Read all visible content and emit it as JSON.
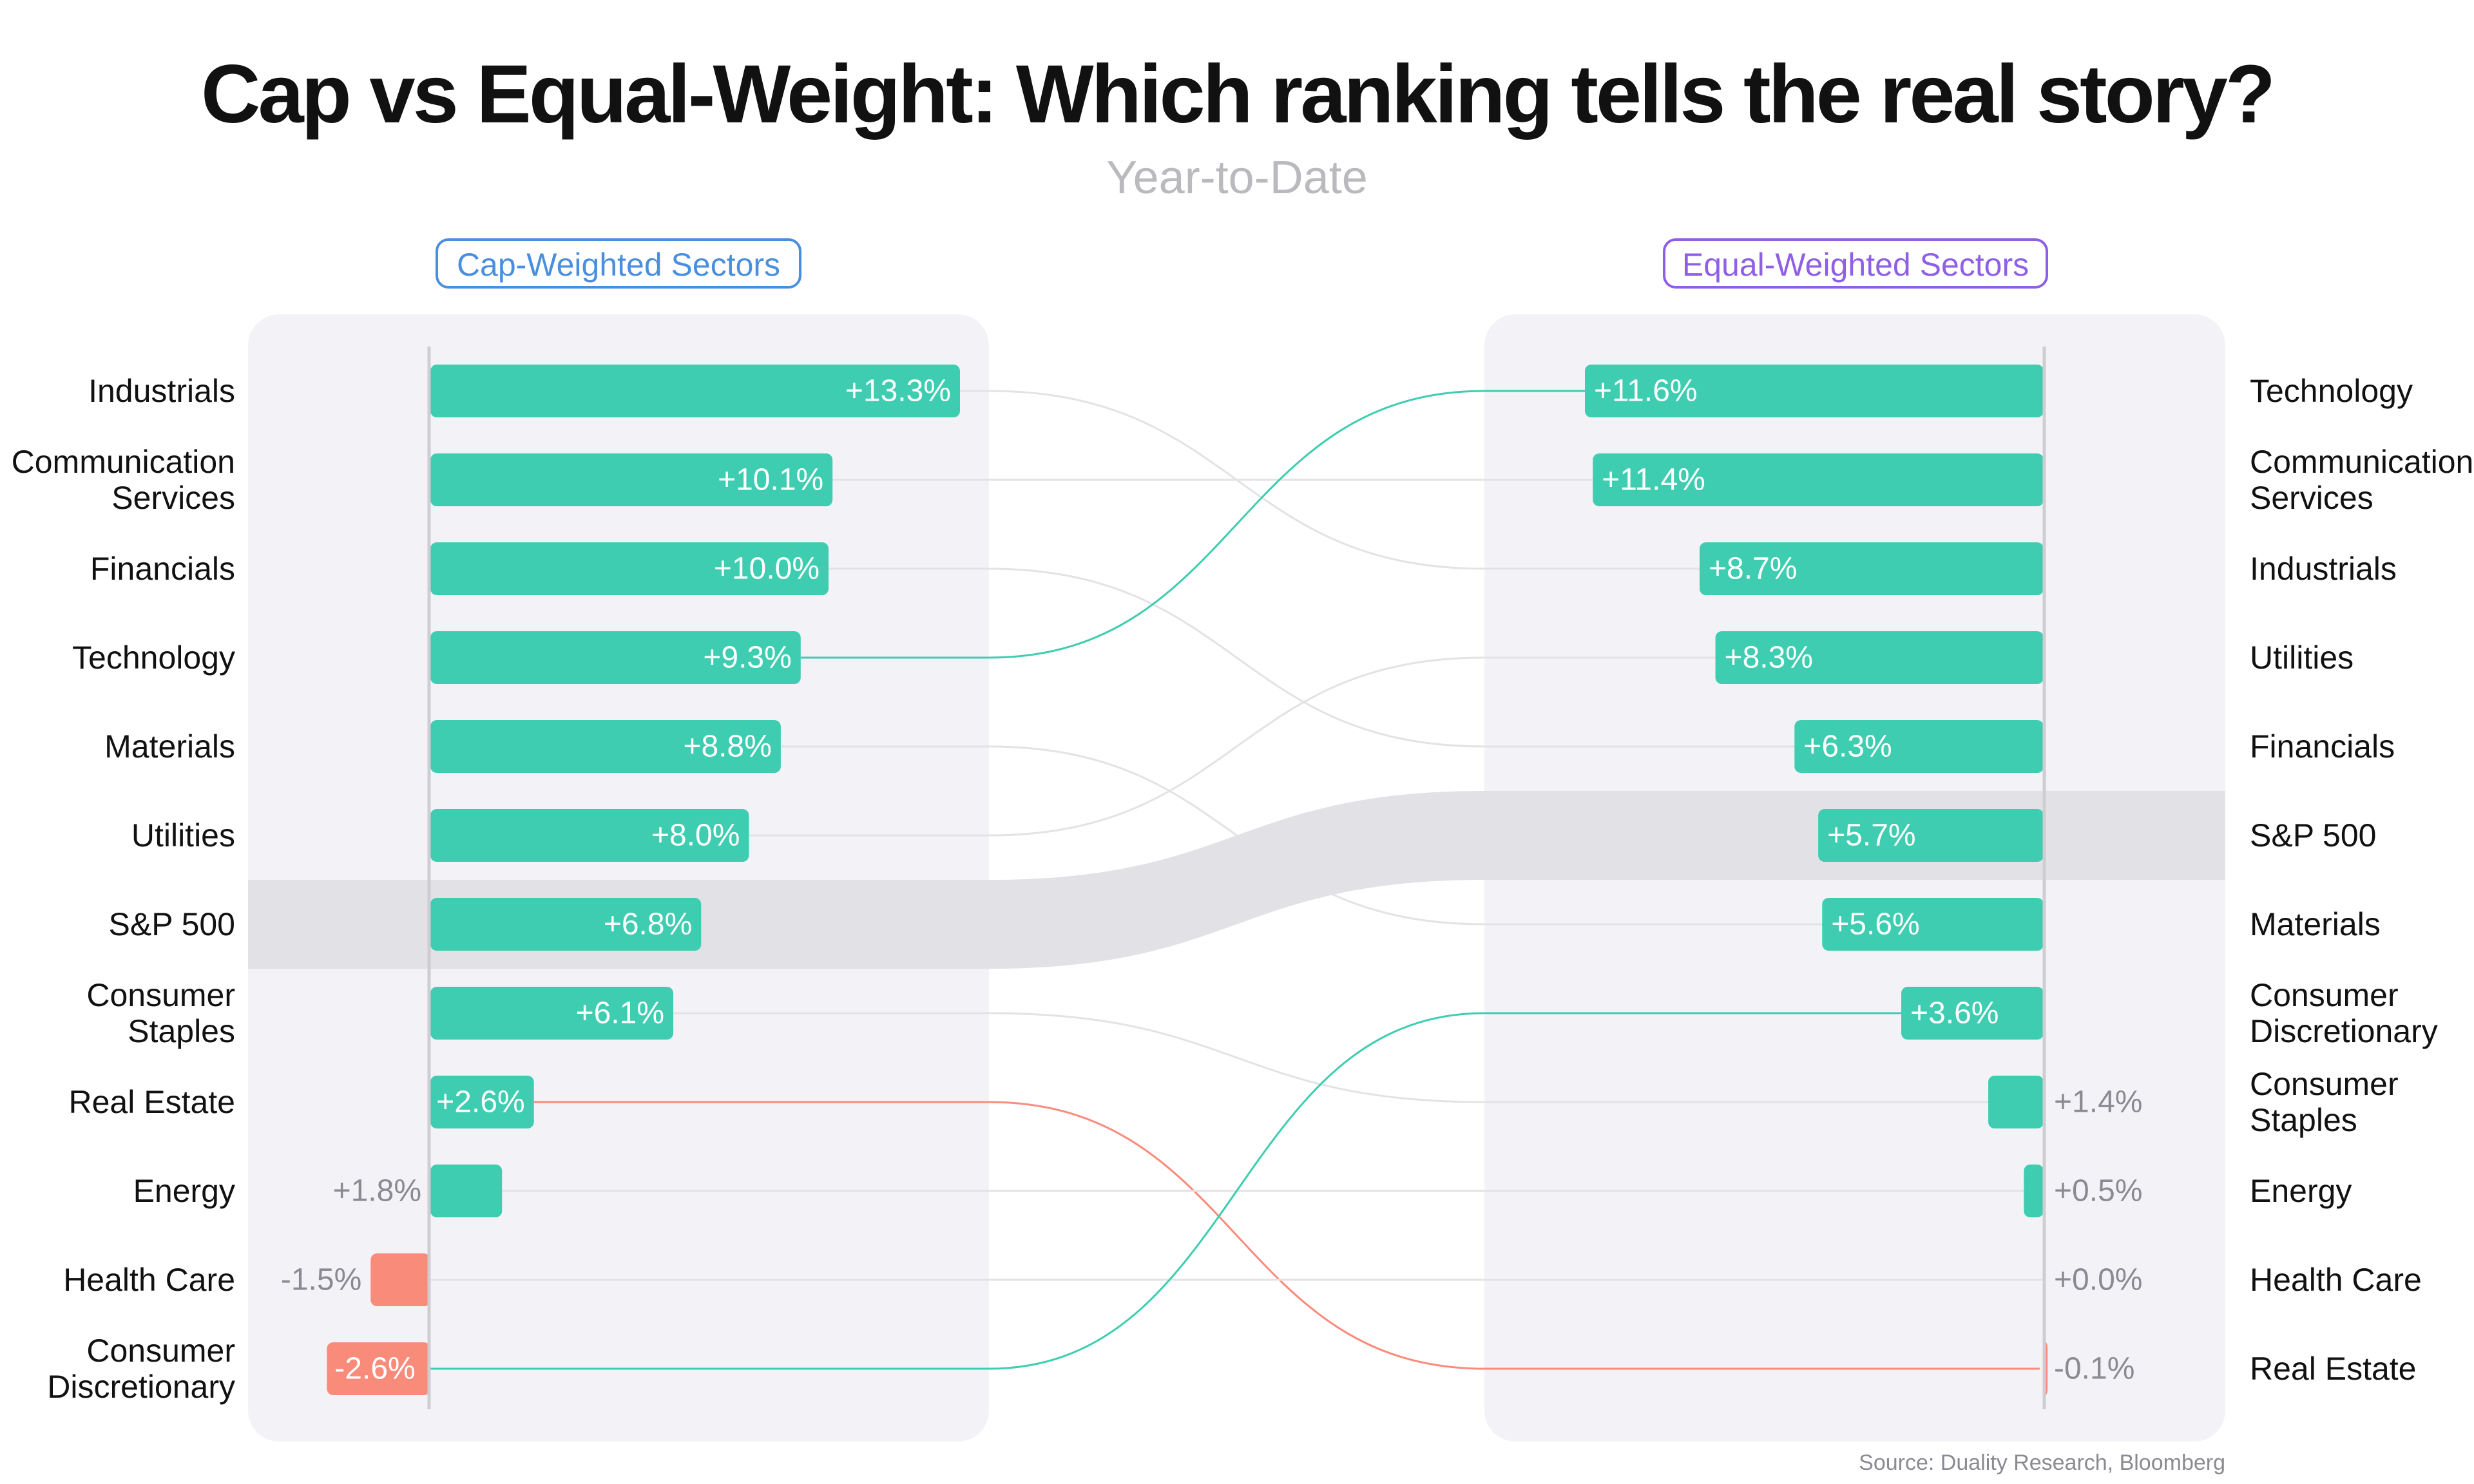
{
  "header": {
    "title": "Cap vs Equal-Weight: Which ranking tells the real story?",
    "subtitle": "Year-to-Date"
  },
  "panels": {
    "left_label": "Cap-Weighted Sectors",
    "right_label": "Equal-Weighted Sectors"
  },
  "footer": {
    "source": "Source: Duality Research, Bloomberg"
  },
  "colors": {
    "positive": "#3ecdb0",
    "negative": "#f98b7b",
    "connector_neutral": "#e3e3e6",
    "panel_bg": "#f3f3f7",
    "benchmark_band": "#e1e1e6",
    "left_accent": "#4a8fde",
    "right_accent": "#8f5fe6",
    "label_outside": "#8a8a90"
  },
  "chart_data": {
    "type": "bar",
    "unit": "%",
    "benchmark": "S&P 500",
    "cap_weighted": [
      {
        "sector": "Industrials",
        "value": 13.3,
        "label": "+13.3%"
      },
      {
        "sector": "Communication Services",
        "value": 10.1,
        "label": "+10.1%"
      },
      {
        "sector": "Financials",
        "value": 10.0,
        "label": "+10.0%"
      },
      {
        "sector": "Technology",
        "value": 9.3,
        "label": "+9.3%"
      },
      {
        "sector": "Materials",
        "value": 8.8,
        "label": "+8.8%"
      },
      {
        "sector": "Utilities",
        "value": 8.0,
        "label": "+8.0%"
      },
      {
        "sector": "S&P 500",
        "value": 6.8,
        "label": "+6.8%"
      },
      {
        "sector": "Consumer Staples",
        "value": 6.1,
        "label": "+6.1%"
      },
      {
        "sector": "Real Estate",
        "value": 2.6,
        "label": "+2.6%"
      },
      {
        "sector": "Energy",
        "value": 1.8,
        "label": "+1.8%"
      },
      {
        "sector": "Health Care",
        "value": -1.5,
        "label": "-1.5%"
      },
      {
        "sector": "Consumer Discretionary",
        "value": -2.6,
        "label": "-2.6%"
      }
    ],
    "equal_weighted": [
      {
        "sector": "Technology",
        "value": 11.6,
        "label": "+11.6%"
      },
      {
        "sector": "Communication Services",
        "value": 11.4,
        "label": "+11.4%"
      },
      {
        "sector": "Industrials",
        "value": 8.7,
        "label": "+8.7%"
      },
      {
        "sector": "Utilities",
        "value": 8.3,
        "label": "+8.3%"
      },
      {
        "sector": "Financials",
        "value": 6.3,
        "label": "+6.3%"
      },
      {
        "sector": "S&P 500",
        "value": 5.7,
        "label": "+5.7%"
      },
      {
        "sector": "Materials",
        "value": 5.6,
        "label": "+5.6%"
      },
      {
        "sector": "Consumer Discretionary",
        "value": 3.6,
        "label": "+3.6%"
      },
      {
        "sector": "Consumer Staples",
        "value": 1.4,
        "label": "+1.4%"
      },
      {
        "sector": "Energy",
        "value": 0.5,
        "label": "+0.5%"
      },
      {
        "sector": "Health Care",
        "value": 0.0,
        "label": "+0.0%"
      },
      {
        "sector": "Real Estate",
        "value": -0.1,
        "label": "-0.1%"
      }
    ],
    "highlighted_connectors": [
      {
        "sector": "Technology",
        "color": "positive"
      },
      {
        "sector": "Consumer Discretionary",
        "color": "positive"
      },
      {
        "sector": "Real Estate",
        "color": "negative"
      }
    ]
  }
}
